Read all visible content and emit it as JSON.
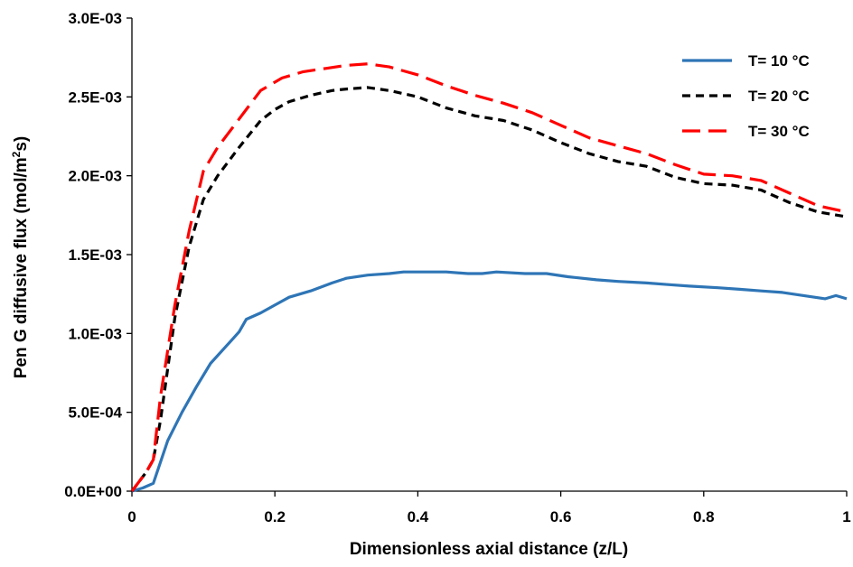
{
  "chart_data": {
    "type": "line",
    "xlabel": "Dimensionless axial distance (z/L)",
    "ylabel_main": "Pen G diffusive flux (mol/m",
    "ylabel_sup": "2",
    "ylabel_tail": "s)",
    "xlim": [
      0,
      1
    ],
    "ylim": [
      0,
      0.003
    ],
    "x_ticks": [
      0,
      0.2,
      0.4,
      0.6,
      0.8,
      1
    ],
    "x_tick_labels": [
      "0",
      "0.2",
      "0.4",
      "0.6",
      "0.8",
      "1"
    ],
    "y_ticks": [
      0,
      0.0005,
      0.001,
      0.0015,
      0.002,
      0.0025,
      0.003
    ],
    "y_tick_labels": [
      "0.0E+00",
      "5.0E-04",
      "1.0E-03",
      "1.5E-03",
      "2.0E-03",
      "2.5E-03",
      "3.0E-03"
    ],
    "grid": false,
    "legend_position": "top-right",
    "series": [
      {
        "name": "T= 10 °C",
        "color": "#2e75b6",
        "dash": "solid",
        "x": [
          0,
          0.015,
          0.03,
          0.05,
          0.07,
          0.09,
          0.11,
          0.13,
          0.15,
          0.16,
          0.18,
          0.2,
          0.22,
          0.25,
          0.28,
          0.3,
          0.33,
          0.36,
          0.38,
          0.41,
          0.44,
          0.47,
          0.49,
          0.51,
          0.55,
          0.58,
          0.61,
          0.65,
          0.68,
          0.72,
          0.75,
          0.78,
          0.82,
          0.85,
          0.88,
          0.91,
          0.94,
          0.97,
          0.985,
          1.0
        ],
        "y": [
          0,
          2e-05,
          5e-05,
          0.00032,
          0.0005,
          0.00066,
          0.00081,
          0.00091,
          0.00101,
          0.00109,
          0.00113,
          0.00118,
          0.00123,
          0.00127,
          0.00132,
          0.00135,
          0.00137,
          0.00138,
          0.00139,
          0.00139,
          0.00139,
          0.00138,
          0.00138,
          0.00139,
          0.00138,
          0.00138,
          0.00136,
          0.00134,
          0.00133,
          0.00132,
          0.00131,
          0.0013,
          0.00129,
          0.00128,
          0.00127,
          0.00126,
          0.00124,
          0.00122,
          0.00124,
          0.00122
        ]
      },
      {
        "name": "T= 20 °C",
        "color": "#000000",
        "dash": "short",
        "x": [
          0,
          0.02,
          0.03,
          0.04,
          0.06,
          0.08,
          0.1,
          0.12,
          0.15,
          0.18,
          0.2,
          0.22,
          0.25,
          0.28,
          0.3,
          0.33,
          0.36,
          0.4,
          0.44,
          0.48,
          0.52,
          0.56,
          0.6,
          0.64,
          0.68,
          0.72,
          0.76,
          0.8,
          0.84,
          0.88,
          0.92,
          0.96,
          1.0
        ],
        "y": [
          0,
          0.00012,
          0.0002,
          0.00045,
          0.0011,
          0.00155,
          0.00185,
          0.002,
          0.00218,
          0.00235,
          0.00242,
          0.00247,
          0.00251,
          0.00254,
          0.00255,
          0.00256,
          0.00254,
          0.0025,
          0.00243,
          0.00238,
          0.00235,
          0.00229,
          0.00221,
          0.00214,
          0.00209,
          0.00206,
          0.00199,
          0.00195,
          0.00194,
          0.00191,
          0.00183,
          0.00177,
          0.00174
        ]
      },
      {
        "name": "T= 30 °C",
        "color": "#ff0000",
        "dash": "long",
        "x": [
          0,
          0.02,
          0.03,
          0.04,
          0.06,
          0.08,
          0.1,
          0.12,
          0.15,
          0.18,
          0.21,
          0.24,
          0.27,
          0.3,
          0.33,
          0.36,
          0.4,
          0.44,
          0.48,
          0.52,
          0.56,
          0.6,
          0.64,
          0.68,
          0.72,
          0.76,
          0.8,
          0.84,
          0.88,
          0.92,
          0.96,
          1.0
        ],
        "y": [
          0,
          0.00012,
          0.0002,
          0.0006,
          0.00118,
          0.00165,
          0.00203,
          0.00218,
          0.00236,
          0.00254,
          0.00262,
          0.00266,
          0.00268,
          0.0027,
          0.00271,
          0.00269,
          0.00264,
          0.00257,
          0.00251,
          0.00246,
          0.0024,
          0.00232,
          0.00224,
          0.00219,
          0.00214,
          0.00207,
          0.00201,
          0.002,
          0.00197,
          0.00189,
          0.00181,
          0.00177
        ]
      }
    ]
  }
}
